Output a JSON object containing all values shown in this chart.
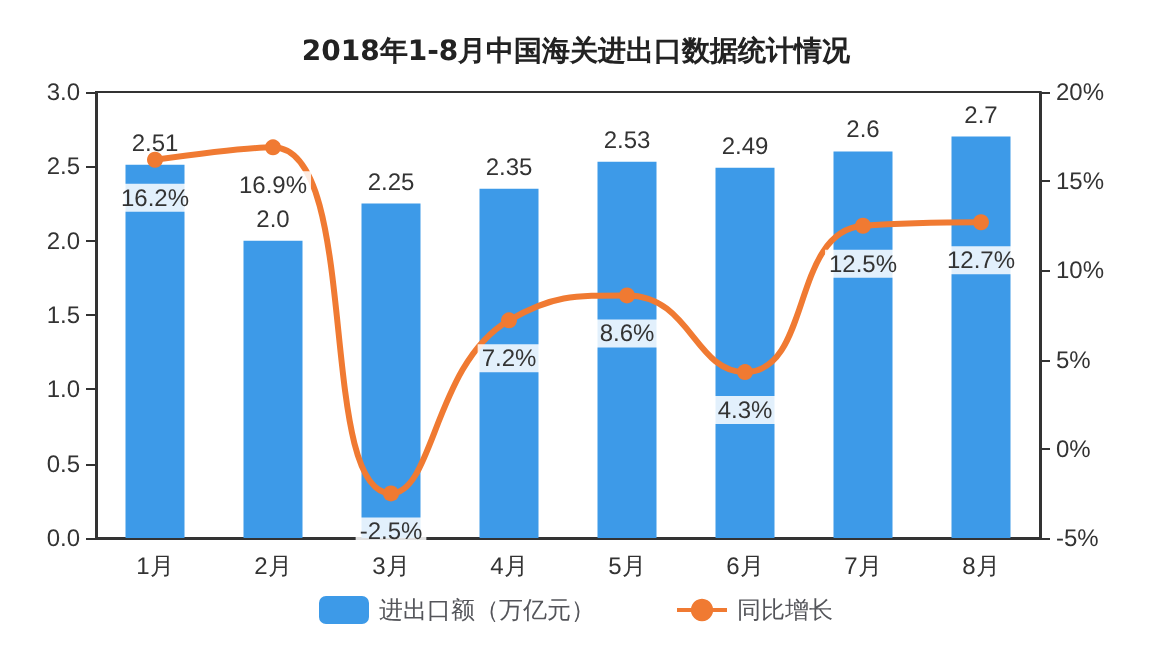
{
  "chart_data": {
    "type": "bar",
    "title": "2018年1-8月中国海关进出口数据统计情况",
    "categories": [
      "1月",
      "2月",
      "3月",
      "4月",
      "5月",
      "6月",
      "7月",
      "8月"
    ],
    "series": [
      {
        "name": "进出口额（万亿元）",
        "color": "#3d9ae8",
        "values": [
          2.51,
          2.0,
          2.25,
          2.35,
          2.53,
          2.49,
          2.6,
          2.7
        ],
        "value_labels": [
          "2.51",
          "2.0",
          "2.25",
          "2.35",
          "2.53",
          "2.49",
          "2.6",
          "2.7"
        ]
      },
      {
        "name": "同比增长",
        "type": "line",
        "axis": "y2",
        "color": "#f07a32",
        "marker": "circle",
        "values": [
          16.2,
          16.9,
          -2.5,
          7.2,
          8.6,
          4.3,
          12.5,
          12.7
        ],
        "value_labels": [
          "16.2%",
          "16.9%",
          "-2.5%",
          "7.2%",
          "8.6%",
          "4.3%",
          "12.5%",
          "12.7%"
        ]
      }
    ],
    "ylim": [
      0,
      3
    ],
    "yticks": [
      {
        "value": 0,
        "label": "0.0"
      },
      {
        "value": 0.5,
        "label": "0.5"
      },
      {
        "value": 1,
        "label": "1.0"
      },
      {
        "value": 1.5,
        "label": "1.5"
      },
      {
        "value": 2,
        "label": "2.0"
      },
      {
        "value": 2.5,
        "label": "2.5"
      },
      {
        "value": 3,
        "label": "3.0"
      }
    ],
    "y2lim": [
      -5,
      20
    ],
    "y2ticks": [
      {
        "value": -5,
        "label": "-5%"
      },
      {
        "value": 0,
        "label": "0%"
      },
      {
        "value": 5,
        "label": "5%"
      },
      {
        "value": 10,
        "label": "10%"
      },
      {
        "value": 15,
        "label": "15%"
      },
      {
        "value": 20,
        "label": "20%"
      }
    ],
    "legend": "bottom"
  }
}
